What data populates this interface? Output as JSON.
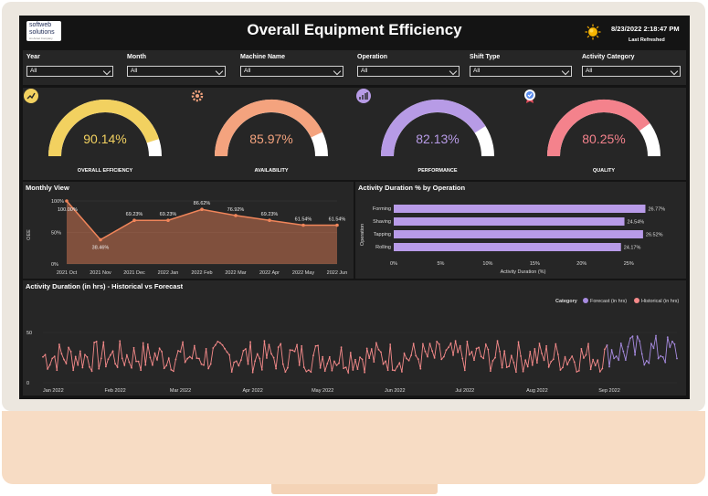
{
  "header": {
    "title": "Overall Equipment Efficiency",
    "logo_line1": "softweb",
    "logo_line2": "solutions",
    "logo_line3": "An Avnet Company",
    "datetime": "8/23/2022 2:18:47 PM",
    "last_refreshed_label": "Last Refreshed",
    "weather_icon": "sun-icon"
  },
  "filters": [
    {
      "label": "Year",
      "value": "All"
    },
    {
      "label": "Month",
      "value": "All"
    },
    {
      "label": "Machine Name",
      "value": "All"
    },
    {
      "label": "Operation",
      "value": "All"
    },
    {
      "label": "Shift Type",
      "value": "All"
    },
    {
      "label": "Activity Category",
      "value": "All"
    }
  ],
  "gauges": [
    {
      "label": "OVERALL EFFICIENCY",
      "value": "90.14%",
      "fraction": 0.9014,
      "color": "#f2d160",
      "icon": "efficiency-icon"
    },
    {
      "label": "AVAILABILITY",
      "value": "85.97%",
      "fraction": 0.8597,
      "color": "#f4a37e",
      "icon": "gear-icon"
    },
    {
      "label": "PERFORMANCE",
      "value": "82.13%",
      "fraction": 0.8213,
      "color": "#b79be6",
      "icon": "performance-icon"
    },
    {
      "label": "QUALITY",
      "value": "80.25%",
      "fraction": 0.8025,
      "color": "#f4828c",
      "icon": "quality-badge-icon"
    }
  ],
  "monthly": {
    "title": "Monthly View",
    "ylabel": "OEE",
    "y_ticks": [
      "0%",
      "50%",
      "100%"
    ],
    "chart_data": {
      "type": "area",
      "categories": [
        "2021 Oct",
        "2021 Nov",
        "2021 Dec",
        "2022 Jan",
        "2022 Feb",
        "2022 Mar",
        "2022 Apr",
        "2022 May",
        "2022 Jun"
      ],
      "values": [
        100.0,
        38.46,
        69.23,
        69.23,
        86.62,
        76.92,
        69.23,
        61.54,
        61.54
      ],
      "labels": [
        "100.00%",
        "38.46%",
        "69.23%",
        "69.23%",
        "86.62%",
        "76.92%",
        "69.23%",
        "61.54%",
        "61.54%"
      ],
      "ylim": [
        0,
        100
      ],
      "color": "#f0855a"
    }
  },
  "activity_by_operation": {
    "title": "Activity Duration % by Operation",
    "ylabel": "Operation",
    "xlabel": "Activity Duration (%)",
    "x_ticks": [
      "0%",
      "5%",
      "10%",
      "15%",
      "20%",
      "25%"
    ],
    "chart_data": {
      "type": "bar",
      "categories": [
        "Forming",
        "Shaving",
        "Tapping",
        "Rolling"
      ],
      "values": [
        26.77,
        24.54,
        26.52,
        24.17
      ],
      "labels": [
        "26.77%",
        "24.54%",
        "26.52%",
        "24.17%"
      ],
      "xlim": [
        0,
        27.5
      ],
      "color": "#b89be8"
    }
  },
  "forecast": {
    "title": "Activity Duration (in hrs) - Historical vs Forecast",
    "legend_title": "Category",
    "legend": [
      {
        "name": "Forecast (in hrs)",
        "color": "#a78be0"
      },
      {
        "name": "Historical (in hrs)",
        "color": "#f58a8a"
      }
    ],
    "y_ticks": [
      "0",
      "50"
    ],
    "x_ticks": [
      "Jan 2022",
      "Feb 2022",
      "Mar 2022",
      "Apr 2022",
      "May 2022",
      "Jun 2022",
      "Jul 2022",
      "Aug 2022",
      "Sep 2022"
    ],
    "chart_data": {
      "type": "line",
      "x_start": "2022-01-01",
      "x_end": "2022-09-30",
      "forecast_start": "2022-09-01",
      "ylim": [
        0,
        60
      ],
      "historical_range": [
        10,
        42
      ],
      "forecast_range": [
        15,
        48
      ]
    }
  }
}
